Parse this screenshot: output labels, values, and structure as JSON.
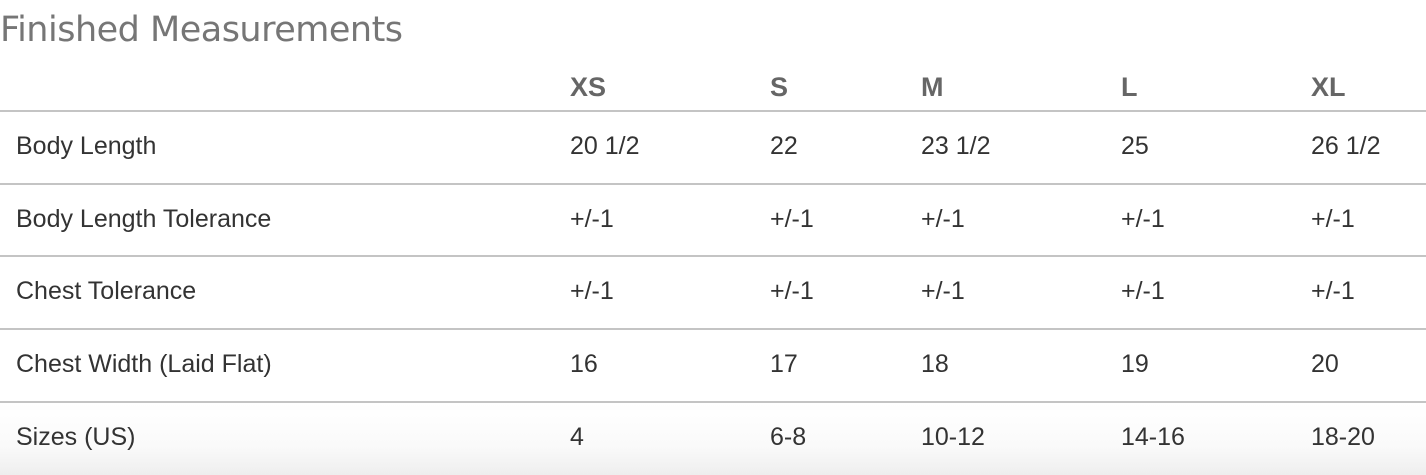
{
  "title": "Finished Measurements",
  "sizes": [
    "XS",
    "S",
    "M",
    "L",
    "XL"
  ],
  "rows": [
    {
      "label": "Body Length",
      "values": [
        "20 1/2",
        "22",
        "23 1/2",
        "25",
        "26 1/2"
      ]
    },
    {
      "label": "Body Length Tolerance",
      "values": [
        "+/-1",
        "+/-1",
        "+/-1",
        "+/-1",
        "+/-1"
      ]
    },
    {
      "label": "Chest Tolerance",
      "values": [
        "+/-1",
        "+/-1",
        "+/-1",
        "+/-1",
        "+/-1"
      ]
    },
    {
      "label": "Chest Width (Laid Flat)",
      "values": [
        "16",
        "17",
        "18",
        "19",
        "20"
      ]
    },
    {
      "label": "Sizes (US)",
      "values": [
        "4",
        "6-8",
        "10-12",
        "14-16",
        "18-20"
      ]
    }
  ]
}
